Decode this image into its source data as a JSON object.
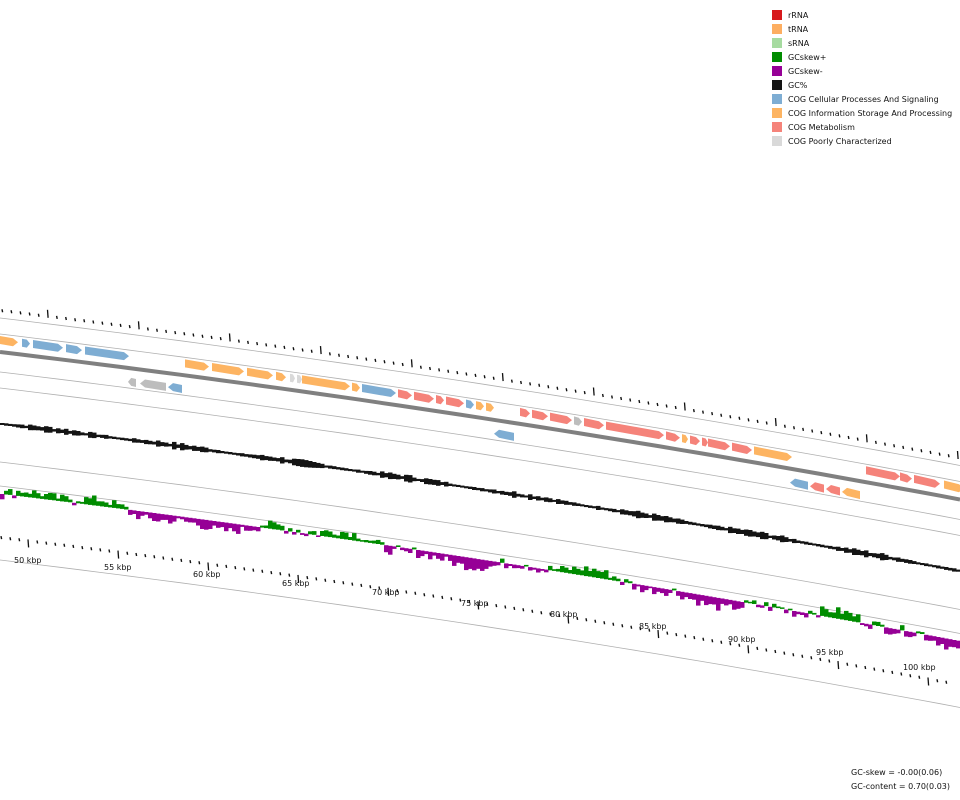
{
  "legend": [
    {
      "label": "rRNA",
      "color": "#d7191c"
    },
    {
      "label": "tRNA",
      "color": "#fdae61"
    },
    {
      "label": "sRNA",
      "color": "#a6dba0"
    },
    {
      "label": "GCskew+",
      "color": "#008c00"
    },
    {
      "label": "GCskew-",
      "color": "#960096"
    },
    {
      "label": "GC%",
      "color": "#141414"
    },
    {
      "label": "COG Cellular Processes And Signaling",
      "color": "#7eadd3"
    },
    {
      "label": "COG Information Storage And Processing",
      "color": "#fdb462"
    },
    {
      "label": "COG Metabolism",
      "color": "#f5837a"
    },
    {
      "label": "COG Poorly Characterized",
      "color": "#d9d9d9"
    }
  ],
  "ticks": [
    "50 kbp",
    "55 kbp",
    "60 kbp",
    "65 kbp",
    "70 kbp",
    "75 kbp",
    "80 kbp",
    "85 kbp",
    "90 kbp",
    "95 kbp",
    "100 kbp"
  ],
  "stats": {
    "gc_skew": "GC-skew = -0.00(0.06)",
    "gc_content": "GC-content = 0.70(0.03)"
  },
  "colors": {
    "backbone": "#808080",
    "ring_line": "#b0b0b0",
    "unknown_gene": "#bdbdbd"
  }
}
